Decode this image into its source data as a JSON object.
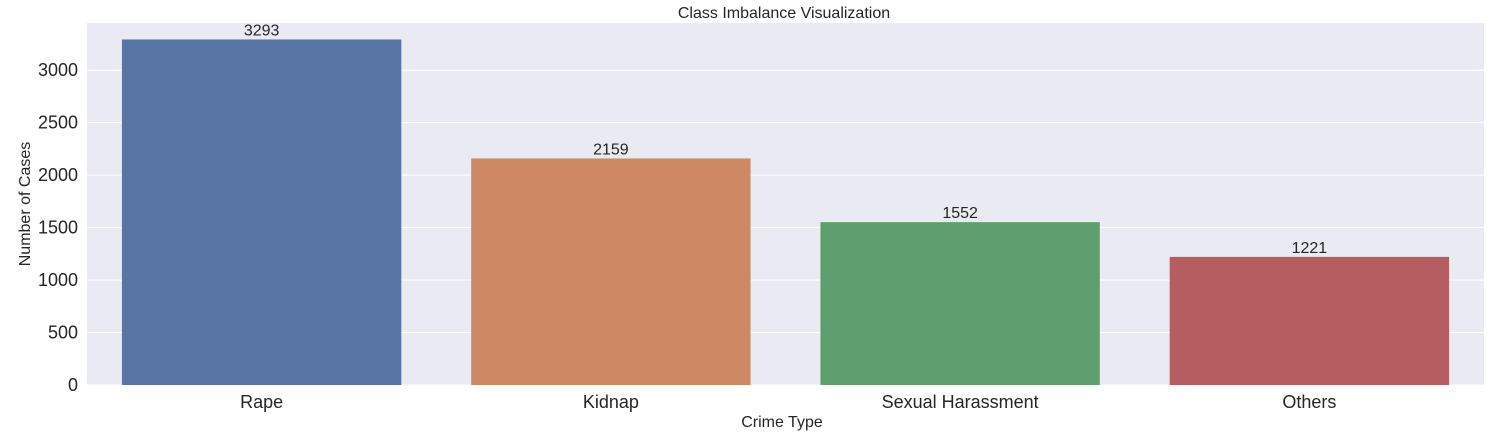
{
  "chart_data": {
    "type": "bar",
    "title": "Class Imbalance Visualization",
    "xlabel": "Crime Type",
    "ylabel": "Number of Cases",
    "categories": [
      "Rape",
      "Kidnap",
      "Sexual Harassment",
      "Others"
    ],
    "values": [
      3293,
      2159,
      1552,
      1221
    ],
    "colors": [
      "#5975a4",
      "#cc8963",
      "#5f9e6e",
      "#b55d60"
    ],
    "ylim": [
      0,
      3450
    ],
    "yticks": [
      0,
      500,
      1000,
      1500,
      2000,
      2500,
      3000
    ],
    "grid": true,
    "background": "#eaeaf2",
    "bar_labels": true
  }
}
